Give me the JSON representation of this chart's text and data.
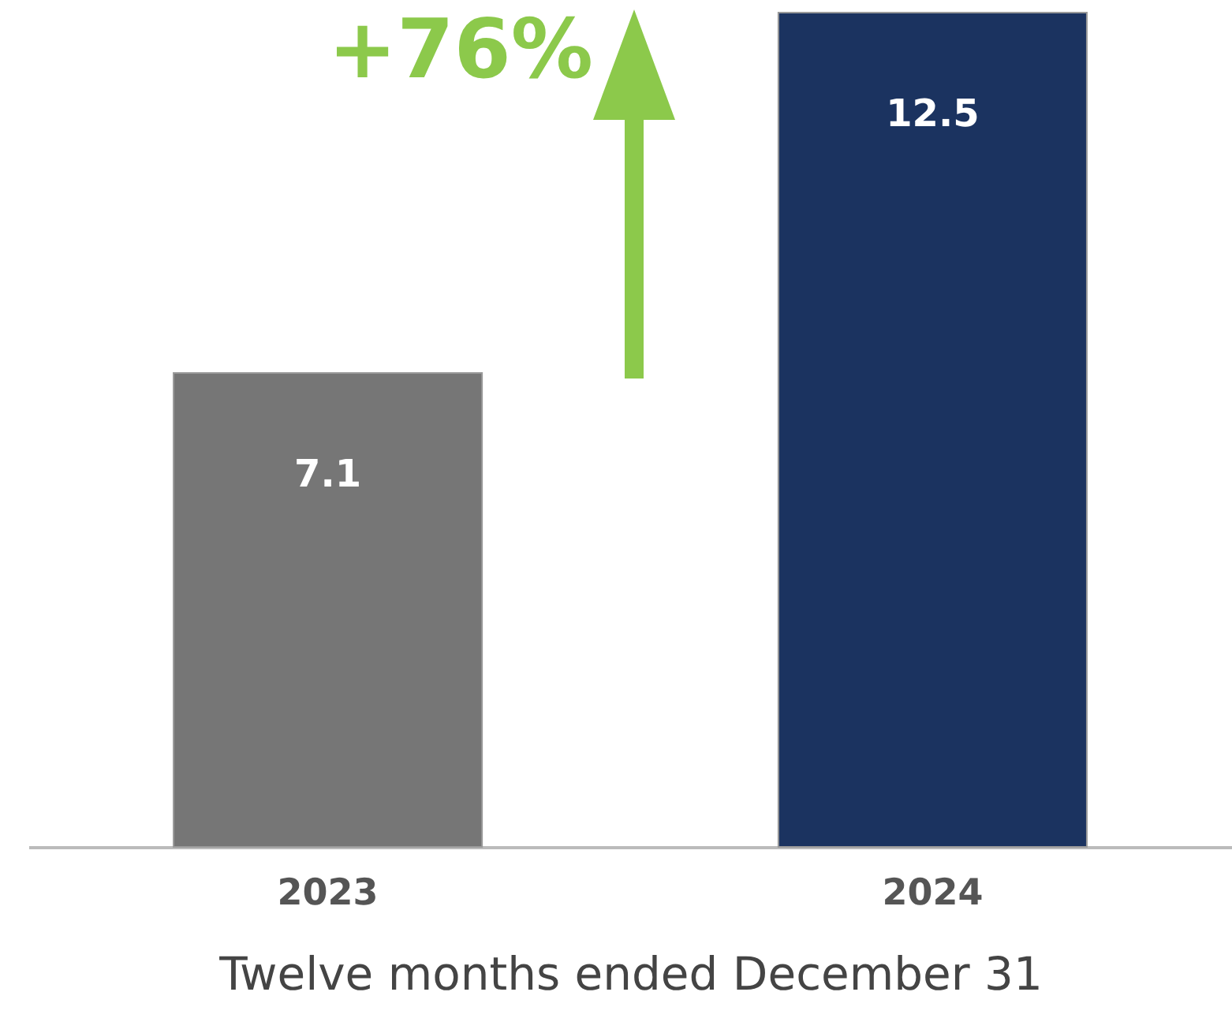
{
  "chart_data": {
    "type": "bar",
    "categories": [
      "2023",
      "2024"
    ],
    "values": [
      7.1,
      12.5
    ],
    "colors": [
      "#767676",
      "#1b3360"
    ],
    "data_labels": true,
    "xlabel": "Twelve months ended December 31",
    "annotations": [
      "+76%"
    ]
  }
}
